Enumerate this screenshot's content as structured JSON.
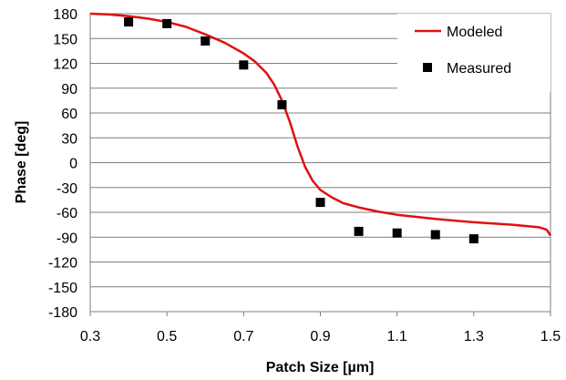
{
  "chart_data": {
    "type": "line",
    "title": "",
    "xlabel": "Patch Size [µm]",
    "ylabel": "Phase [deg]",
    "xlim": [
      0.3,
      1.5
    ],
    "ylim": [
      -180,
      180
    ],
    "xticks": [
      "0.3",
      "0.5",
      "0.7",
      "0.9",
      "1.1",
      "1.3",
      "1.5"
    ],
    "yticks": [
      "180",
      "150",
      "120",
      "90",
      "60",
      "30",
      "0",
      "-30",
      "-60",
      "-90",
      "-120",
      "-150",
      "-180"
    ],
    "grid": "horizontal",
    "legend": "top-right",
    "series": [
      {
        "name": "Modeled",
        "style": "line",
        "color": "#e01010",
        "x": [
          0.3,
          0.35,
          0.4,
          0.45,
          0.5,
          0.55,
          0.6,
          0.65,
          0.7,
          0.73,
          0.76,
          0.78,
          0.8,
          0.82,
          0.84,
          0.86,
          0.88,
          0.9,
          0.93,
          0.96,
          1.0,
          1.05,
          1.1,
          1.2,
          1.3,
          1.4,
          1.47,
          1.49,
          1.5
        ],
        "y": [
          180,
          179,
          177,
          174,
          170,
          164,
          155,
          145,
          132,
          122,
          108,
          94,
          75,
          50,
          20,
          -5,
          -22,
          -33,
          -42,
          -49,
          -54,
          -59,
          -63,
          -68,
          -72,
          -75,
          -78,
          -81,
          -88
        ]
      },
      {
        "name": "Measured",
        "style": "marker",
        "color": "#000000",
        "x": [
          0.4,
          0.5,
          0.6,
          0.7,
          0.8,
          0.9,
          1.0,
          1.1,
          1.2,
          1.3
        ],
        "y": [
          170,
          168,
          147,
          118,
          70,
          -48,
          -83,
          -85,
          -87,
          -92
        ]
      }
    ]
  }
}
